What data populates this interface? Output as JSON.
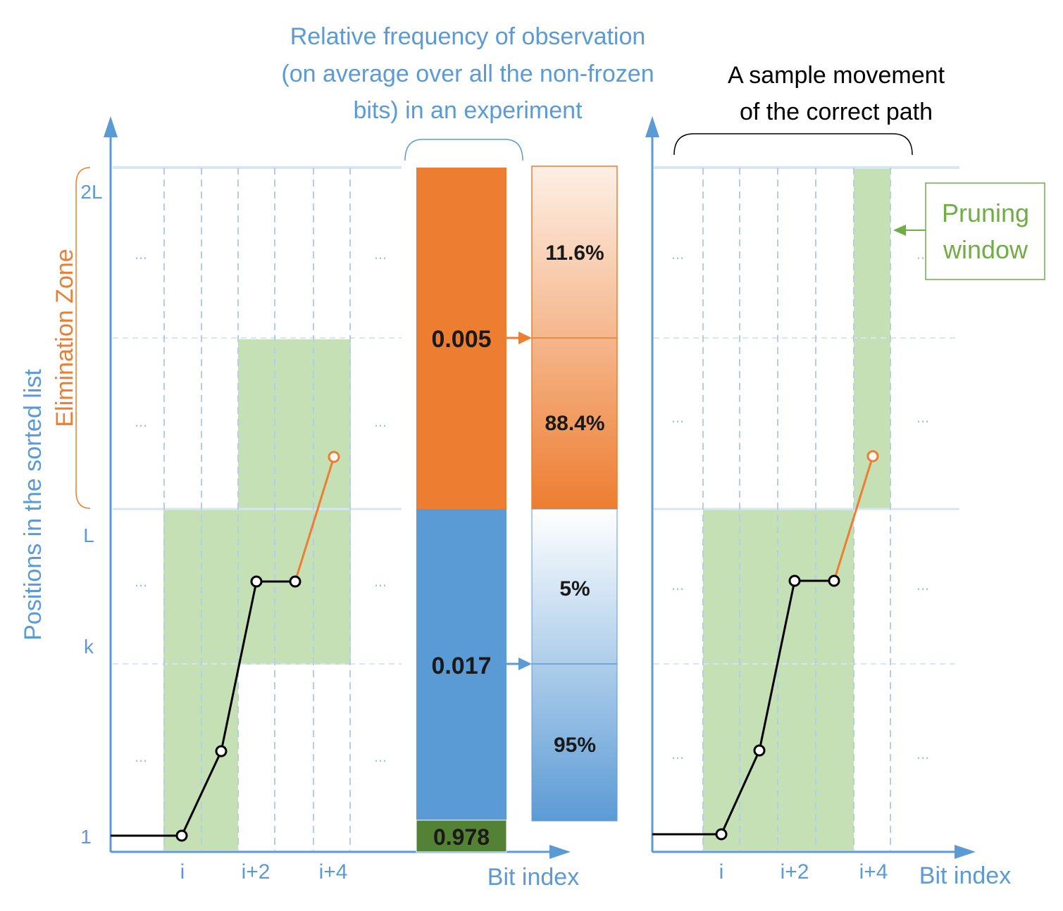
{
  "title_block": {
    "line1": "Relative frequency of observation",
    "line2": "(on average over all the non-frozen",
    "line3": "bits) in an experiment"
  },
  "sample_title": {
    "line1": "A sample movement",
    "line2": "of the correct path"
  },
  "y_axis": {
    "label": "Positions in the sorted list",
    "ticks": [
      "2L",
      "L",
      "k",
      "1"
    ],
    "zone_label": "Elimination Zone"
  },
  "x_axis": {
    "label_left": "Bit index",
    "label_right": "Bit index",
    "ticks_left": [
      "i",
      "i+2",
      "i+4"
    ],
    "ticks_right": [
      "i",
      "i+2",
      "i+4"
    ]
  },
  "ellipsis": "...",
  "frequency_bar": {
    "upper_value": "0.005",
    "lower_value": "0.017",
    "bottom_value": "0.978"
  },
  "percent_bar": {
    "upper_top": "11.6%",
    "upper_bottom": "88.4%",
    "lower_top": "5%",
    "lower_bottom": "95%"
  },
  "pruning_window": {
    "line1": "Pruning",
    "line2": "window"
  },
  "colors": {
    "blue": "#5b9bd5",
    "orange": "#ed7d31",
    "green_fill": "#c5e0b4",
    "dark_green": "#548235",
    "pruning_green": "#70ad47"
  }
}
